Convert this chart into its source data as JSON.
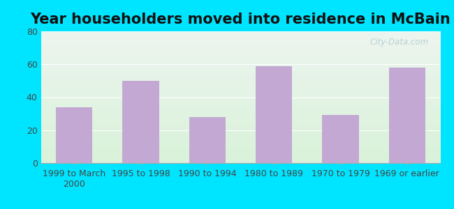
{
  "title": "Year householders moved into residence in McBain",
  "categories": [
    "1999 to March\n2000",
    "1995 to 1998",
    "1990 to 1994",
    "1980 to 1989",
    "1970 to 1979",
    "1969 or earlier"
  ],
  "values": [
    34,
    50,
    28,
    59,
    29,
    58
  ],
  "bar_color": "#c4a8d4",
  "ylim": [
    0,
    80
  ],
  "yticks": [
    0,
    20,
    40,
    60,
    80
  ],
  "bg_outer": "#00e5ff",
  "grid_color": "#e8e8e8",
  "title_fontsize": 15,
  "tick_fontsize": 9,
  "watermark": "City-Data.com",
  "grad_top_color": "#e8eeea",
  "grad_bottom_color": "#d8ecd8",
  "figsize": [
    6.5,
    3.0
  ],
  "dpi": 100
}
